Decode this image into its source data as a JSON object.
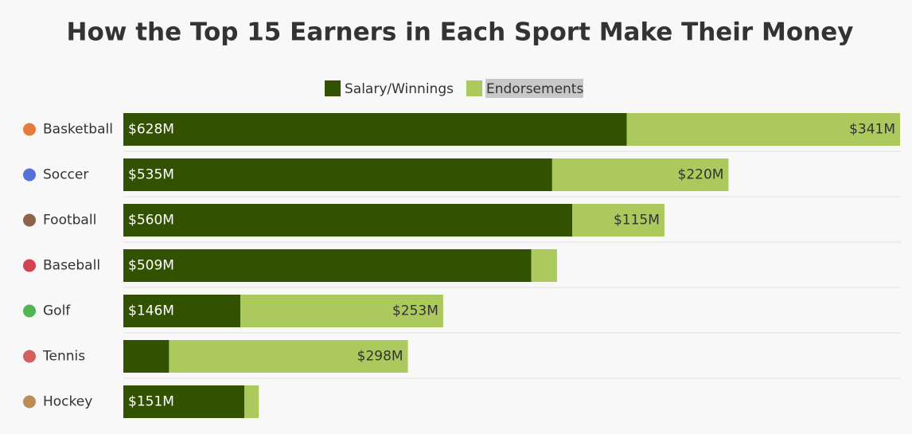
{
  "chart_data": {
    "type": "stacked-bar-horizontal",
    "title": "How the Top 15 Earners in Each Sport Make Their Money",
    "categories": [
      "Basketball",
      "Soccer",
      "Football",
      "Baseball",
      "Golf",
      "Tennis",
      "Hockey"
    ],
    "series": [
      {
        "name": "Salary/Winnings",
        "color": "#335201",
        "values": [
          628,
          535,
          560,
          509,
          146,
          57,
          151
        ],
        "value_labels": [
          "$628M",
          "$535M",
          "$560M",
          "$509M",
          "$146M",
          null,
          "$151M"
        ]
      },
      {
        "name": "Endorsements",
        "color": "#abc95c",
        "values": [
          341,
          220,
          115,
          32,
          253,
          298,
          18
        ],
        "value_labels": [
          "$341M",
          "$220M",
          "$115M",
          null,
          "$253M",
          "$298M",
          null
        ]
      }
    ]
  }
}
